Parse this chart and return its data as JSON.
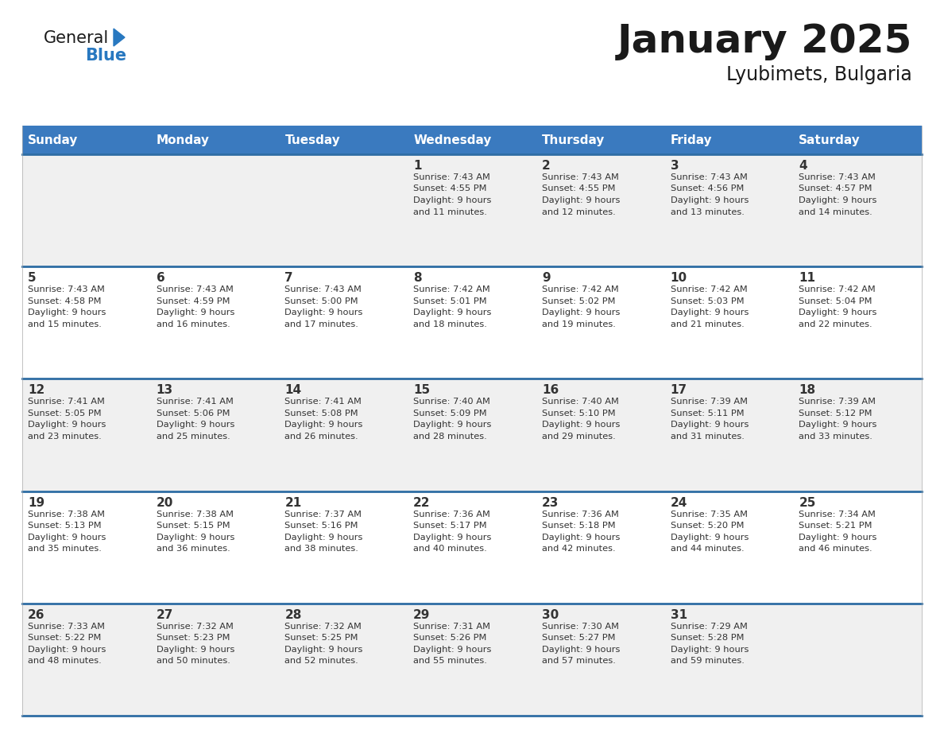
{
  "title": "January 2025",
  "subtitle": "Lyubimets, Bulgaria",
  "days_of_week": [
    "Sunday",
    "Monday",
    "Tuesday",
    "Wednesday",
    "Thursday",
    "Friday",
    "Saturday"
  ],
  "header_bg": "#3a7abf",
  "header_text": "#ffffff",
  "row_bg_odd": "#f0f0f0",
  "row_bg_even": "#ffffff",
  "separator_color": "#2e6da4",
  "text_color": "#333333",
  "calendar_data": [
    [
      null,
      null,
      null,
      {
        "day": 1,
        "sunrise": "7:43 AM",
        "sunset": "4:55 PM",
        "daylight_line1": "Daylight: 9 hours",
        "daylight_line2": "and 11 minutes."
      },
      {
        "day": 2,
        "sunrise": "7:43 AM",
        "sunset": "4:55 PM",
        "daylight_line1": "Daylight: 9 hours",
        "daylight_line2": "and 12 minutes."
      },
      {
        "day": 3,
        "sunrise": "7:43 AM",
        "sunset": "4:56 PM",
        "daylight_line1": "Daylight: 9 hours",
        "daylight_line2": "and 13 minutes."
      },
      {
        "day": 4,
        "sunrise": "7:43 AM",
        "sunset": "4:57 PM",
        "daylight_line1": "Daylight: 9 hours",
        "daylight_line2": "and 14 minutes."
      }
    ],
    [
      {
        "day": 5,
        "sunrise": "7:43 AM",
        "sunset": "4:58 PM",
        "daylight_line1": "Daylight: 9 hours",
        "daylight_line2": "and 15 minutes."
      },
      {
        "day": 6,
        "sunrise": "7:43 AM",
        "sunset": "4:59 PM",
        "daylight_line1": "Daylight: 9 hours",
        "daylight_line2": "and 16 minutes."
      },
      {
        "day": 7,
        "sunrise": "7:43 AM",
        "sunset": "5:00 PM",
        "daylight_line1": "Daylight: 9 hours",
        "daylight_line2": "and 17 minutes."
      },
      {
        "day": 8,
        "sunrise": "7:42 AM",
        "sunset": "5:01 PM",
        "daylight_line1": "Daylight: 9 hours",
        "daylight_line2": "and 18 minutes."
      },
      {
        "day": 9,
        "sunrise": "7:42 AM",
        "sunset": "5:02 PM",
        "daylight_line1": "Daylight: 9 hours",
        "daylight_line2": "and 19 minutes."
      },
      {
        "day": 10,
        "sunrise": "7:42 AM",
        "sunset": "5:03 PM",
        "daylight_line1": "Daylight: 9 hours",
        "daylight_line2": "and 21 minutes."
      },
      {
        "day": 11,
        "sunrise": "7:42 AM",
        "sunset": "5:04 PM",
        "daylight_line1": "Daylight: 9 hours",
        "daylight_line2": "and 22 minutes."
      }
    ],
    [
      {
        "day": 12,
        "sunrise": "7:41 AM",
        "sunset": "5:05 PM",
        "daylight_line1": "Daylight: 9 hours",
        "daylight_line2": "and 23 minutes."
      },
      {
        "day": 13,
        "sunrise": "7:41 AM",
        "sunset": "5:06 PM",
        "daylight_line1": "Daylight: 9 hours",
        "daylight_line2": "and 25 minutes."
      },
      {
        "day": 14,
        "sunrise": "7:41 AM",
        "sunset": "5:08 PM",
        "daylight_line1": "Daylight: 9 hours",
        "daylight_line2": "and 26 minutes."
      },
      {
        "day": 15,
        "sunrise": "7:40 AM",
        "sunset": "5:09 PM",
        "daylight_line1": "Daylight: 9 hours",
        "daylight_line2": "and 28 minutes."
      },
      {
        "day": 16,
        "sunrise": "7:40 AM",
        "sunset": "5:10 PM",
        "daylight_line1": "Daylight: 9 hours",
        "daylight_line2": "and 29 minutes."
      },
      {
        "day": 17,
        "sunrise": "7:39 AM",
        "sunset": "5:11 PM",
        "daylight_line1": "Daylight: 9 hours",
        "daylight_line2": "and 31 minutes."
      },
      {
        "day": 18,
        "sunrise": "7:39 AM",
        "sunset": "5:12 PM",
        "daylight_line1": "Daylight: 9 hours",
        "daylight_line2": "and 33 minutes."
      }
    ],
    [
      {
        "day": 19,
        "sunrise": "7:38 AM",
        "sunset": "5:13 PM",
        "daylight_line1": "Daylight: 9 hours",
        "daylight_line2": "and 35 minutes."
      },
      {
        "day": 20,
        "sunrise": "7:38 AM",
        "sunset": "5:15 PM",
        "daylight_line1": "Daylight: 9 hours",
        "daylight_line2": "and 36 minutes."
      },
      {
        "day": 21,
        "sunrise": "7:37 AM",
        "sunset": "5:16 PM",
        "daylight_line1": "Daylight: 9 hours",
        "daylight_line2": "and 38 minutes."
      },
      {
        "day": 22,
        "sunrise": "7:36 AM",
        "sunset": "5:17 PM",
        "daylight_line1": "Daylight: 9 hours",
        "daylight_line2": "and 40 minutes."
      },
      {
        "day": 23,
        "sunrise": "7:36 AM",
        "sunset": "5:18 PM",
        "daylight_line1": "Daylight: 9 hours",
        "daylight_line2": "and 42 minutes."
      },
      {
        "day": 24,
        "sunrise": "7:35 AM",
        "sunset": "5:20 PM",
        "daylight_line1": "Daylight: 9 hours",
        "daylight_line2": "and 44 minutes."
      },
      {
        "day": 25,
        "sunrise": "7:34 AM",
        "sunset": "5:21 PM",
        "daylight_line1": "Daylight: 9 hours",
        "daylight_line2": "and 46 minutes."
      }
    ],
    [
      {
        "day": 26,
        "sunrise": "7:33 AM",
        "sunset": "5:22 PM",
        "daylight_line1": "Daylight: 9 hours",
        "daylight_line2": "and 48 minutes."
      },
      {
        "day": 27,
        "sunrise": "7:32 AM",
        "sunset": "5:23 PM",
        "daylight_line1": "Daylight: 9 hours",
        "daylight_line2": "and 50 minutes."
      },
      {
        "day": 28,
        "sunrise": "7:32 AM",
        "sunset": "5:25 PM",
        "daylight_line1": "Daylight: 9 hours",
        "daylight_line2": "and 52 minutes."
      },
      {
        "day": 29,
        "sunrise": "7:31 AM",
        "sunset": "5:26 PM",
        "daylight_line1": "Daylight: 9 hours",
        "daylight_line2": "and 55 minutes."
      },
      {
        "day": 30,
        "sunrise": "7:30 AM",
        "sunset": "5:27 PM",
        "daylight_line1": "Daylight: 9 hours",
        "daylight_line2": "and 57 minutes."
      },
      {
        "day": 31,
        "sunrise": "7:29 AM",
        "sunset": "5:28 PM",
        "daylight_line1": "Daylight: 9 hours",
        "daylight_line2": "and 59 minutes."
      },
      null
    ]
  ],
  "logo_color_general": "#1a1a1a",
  "logo_color_blue": "#2878c0",
  "logo_triangle_color": "#2878c0"
}
